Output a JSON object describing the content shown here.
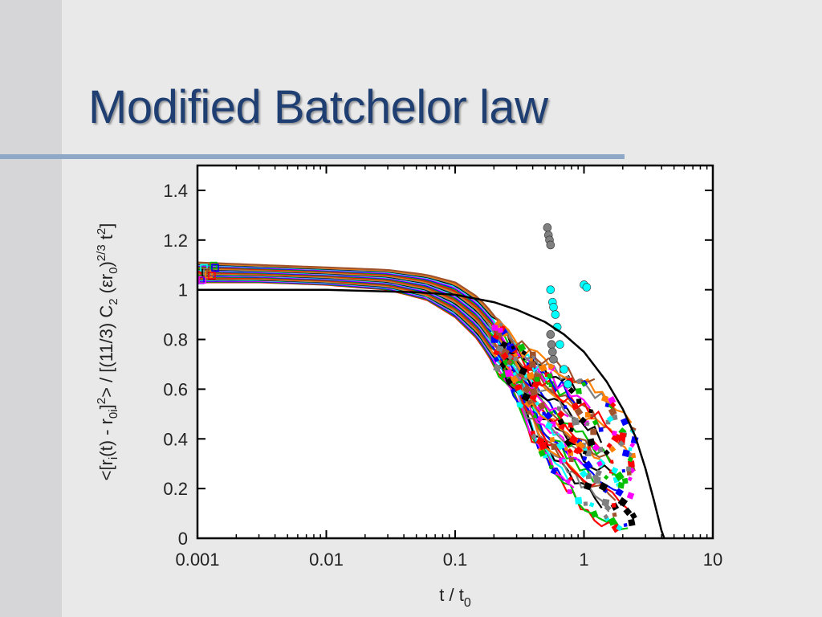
{
  "slide": {
    "title": "Modified Batchelor law"
  },
  "colors": {
    "title": "#1f3f73",
    "rule": "#8ea9c8",
    "model_curve": "#000000",
    "background": "#e9e9ea",
    "series_palette": [
      "#ff0000",
      "#00c000",
      "#0000ff",
      "#ff00ff",
      "#00ffff",
      "#000000",
      "#808080",
      "#ff8000",
      "#a0522d"
    ]
  },
  "chart_data": {
    "type": "scatter",
    "title": "",
    "xlabel": "t / t0",
    "ylabel": "<[ri(t) - r0i]2> / [(11/3) C2 (εr0)2/3 t2]",
    "xscale": "log",
    "xlim": [
      0.001,
      10
    ],
    "ylim": [
      0,
      1.5
    ],
    "x_ticks": [
      "0.001",
      "0.01",
      "0.1",
      "1",
      "10"
    ],
    "y_ticks": [
      "0",
      "0.2",
      "0.4",
      "0.6",
      "0.8",
      "1",
      "1.2",
      "1.4"
    ],
    "grid": false,
    "legend": "none",
    "series": [
      {
        "kind": "line",
        "x": [
          0.001,
          0.01,
          0.05,
          0.1,
          0.2,
          0.3,
          0.5,
          0.7,
          1.0,
          1.5,
          2.0,
          2.5,
          3.0,
          3.5,
          4.0,
          4.2
        ],
        "y": [
          1.0,
          1.0,
          0.99,
          0.98,
          0.95,
          0.92,
          0.87,
          0.82,
          0.75,
          0.63,
          0.52,
          0.41,
          0.28,
          0.15,
          0.03,
          0.0
        ]
      },
      {
        "kind": "data-band",
        "x": [
          0.001,
          0.003,
          0.01,
          0.03,
          0.06,
          0.1,
          0.15,
          0.2,
          0.3,
          0.4,
          0.6,
          1.0,
          1.5,
          2.0,
          2.5
        ],
        "y_upper": [
          1.11,
          1.1,
          1.09,
          1.08,
          1.06,
          1.03,
          0.97,
          0.9,
          0.78,
          0.74,
          0.7,
          0.64,
          0.58,
          0.52,
          0.45
        ],
        "y_lower": [
          1.03,
          1.03,
          1.02,
          1.0,
          0.96,
          0.89,
          0.8,
          0.7,
          0.55,
          0.4,
          0.25,
          0.12,
          0.05,
          0.02,
          0.0
        ]
      },
      {
        "kind": "points",
        "color": "#808080",
        "x": [
          0.52,
          0.53,
          0.54,
          0.55,
          0.55,
          0.56,
          0.57,
          0.58
        ],
        "y": [
          1.25,
          1.22,
          1.2,
          1.18,
          0.82,
          0.78,
          0.75,
          0.72
        ]
      },
      {
        "kind": "points",
        "color": "#00ffff",
        "x": [
          0.55,
          0.57,
          0.58,
          0.6,
          0.62,
          0.65,
          0.7,
          0.75
        ],
        "y": [
          1.0,
          0.95,
          0.93,
          0.9,
          0.85,
          0.78,
          0.68,
          0.62
        ]
      },
      {
        "kind": "points",
        "color": "#00ffff",
        "x": [
          1.0,
          1.05
        ],
        "y": [
          1.02,
          1.01
        ]
      }
    ]
  }
}
